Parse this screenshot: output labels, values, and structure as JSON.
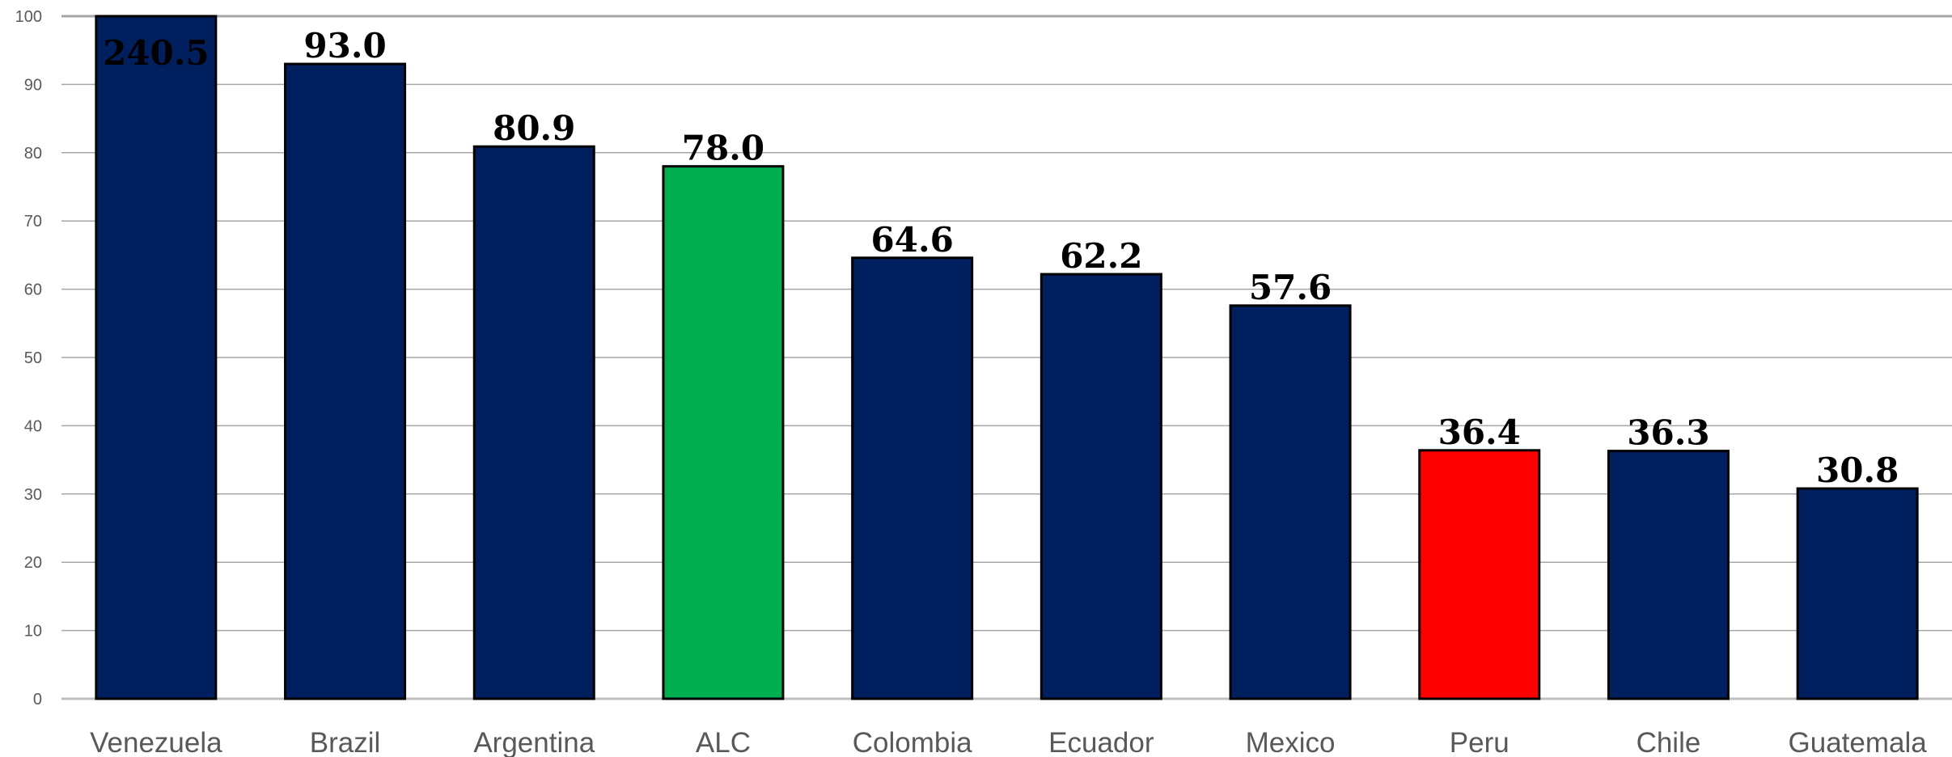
{
  "chart_data": {
    "type": "bar",
    "title": "",
    "xlabel": "",
    "ylabel": "",
    "ylim": [
      0,
      100
    ],
    "yticks": [
      0,
      10,
      20,
      30,
      40,
      50,
      60,
      70,
      80,
      90,
      100
    ],
    "grid": true,
    "legend": "none",
    "categories": [
      "Venezuela",
      "Brazil",
      "Argentina",
      "ALC",
      "Colombia",
      "Ecuador",
      "Mexico",
      "Peru",
      "Chile",
      "Guatemala"
    ],
    "values": [
      240.5,
      93.0,
      80.9,
      78.0,
      64.6,
      62.2,
      57.6,
      36.4,
      36.3,
      30.8
    ],
    "data_labels": [
      "240.5",
      "93.0",
      "80.9",
      "78.0",
      "64.6",
      "62.2",
      "57.6",
      "36.4",
      "36.3",
      "30.8"
    ],
    "colors": {
      "default": "#001F5F",
      "highlight": {
        "ALC": "#00B050",
        "Peru": "#FF0000"
      },
      "bar_outline": "#000000",
      "gridline": "#A6A6A6",
      "axis_text": "#595959"
    }
  }
}
